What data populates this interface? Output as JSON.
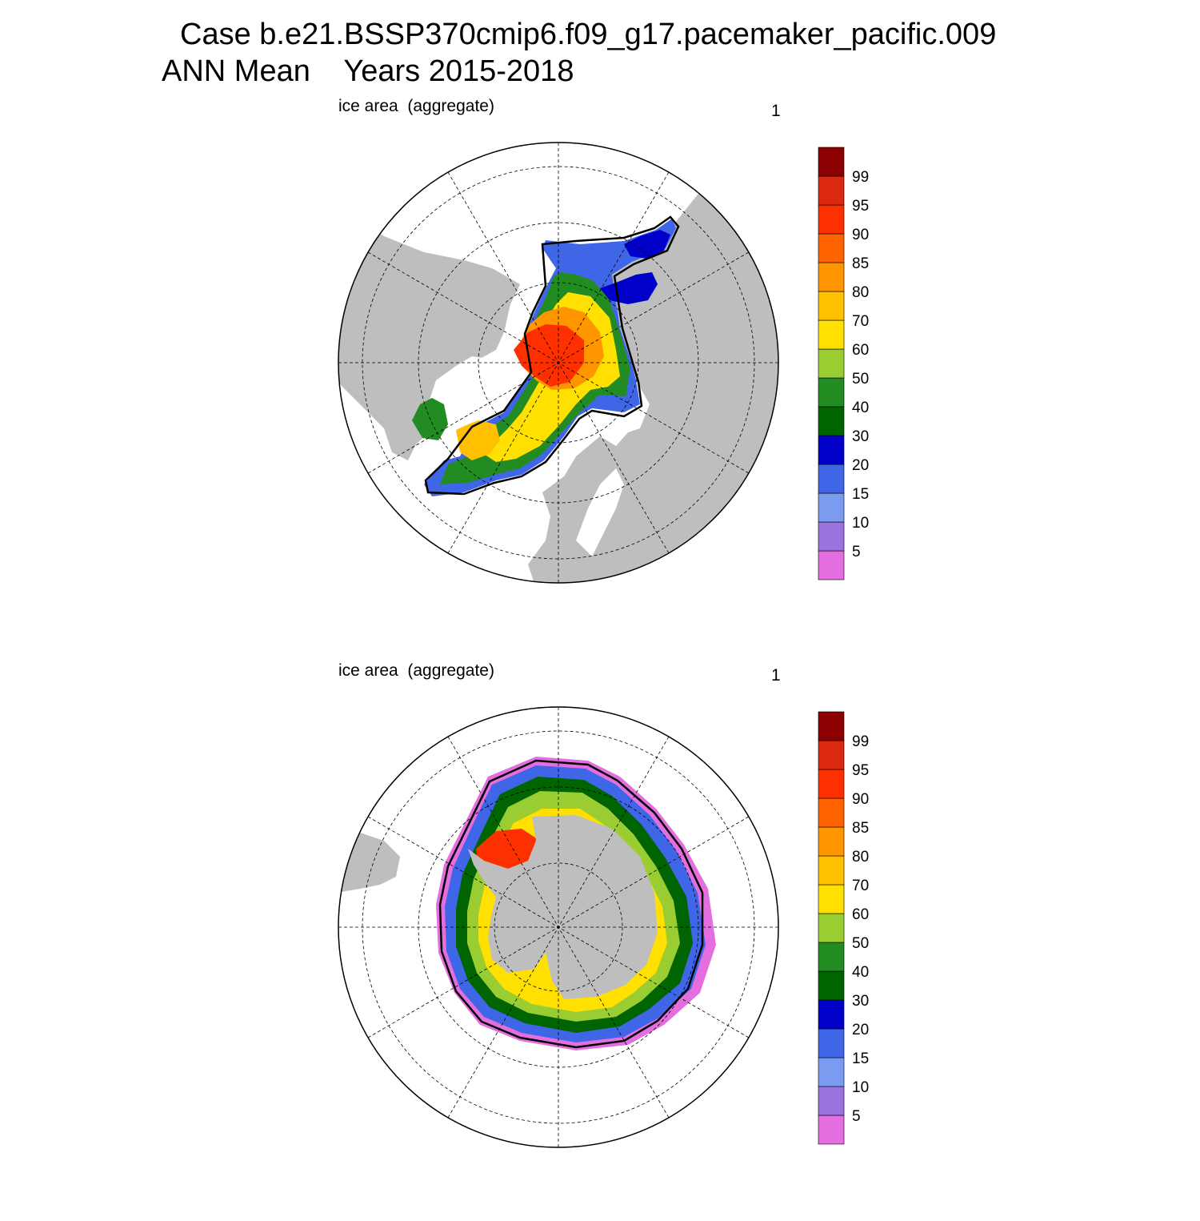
{
  "title": {
    "line1": "Case b.e21.BSSP370cmip6.f09_g17.pacemaker_pacific.009",
    "line2": "ANN Mean    Years 2015-2018"
  },
  "colors": {
    "land": "#bebebe",
    "ocean": "#ffffff",
    "grid": "#000000",
    "extent_line": "#000000"
  },
  "colorbar": {
    "labels": [
      "5",
      "10",
      "15",
      "20",
      "30",
      "40",
      "50",
      "60",
      "70",
      "80",
      "85",
      "90",
      "95",
      "99"
    ],
    "colors": [
      "#e46ee0",
      "#9b72de",
      "#7b9bf0",
      "#4066e8",
      "#0000c8",
      "#006400",
      "#228b22",
      "#9acd32",
      "#ffe000",
      "#ffc000",
      "#ff9600",
      "#ff6400",
      "#ff3000",
      "#dc2a10",
      "#8b0000"
    ]
  },
  "panels": [
    {
      "id": "north",
      "hemisphere": "Arctic (NH)",
      "title": "ice area  (aggregate)",
      "units": "1"
    },
    {
      "id": "south",
      "hemisphere": "Antarctic (SH)",
      "title": "ice area  (aggregate)",
      "units": "1"
    }
  ]
}
